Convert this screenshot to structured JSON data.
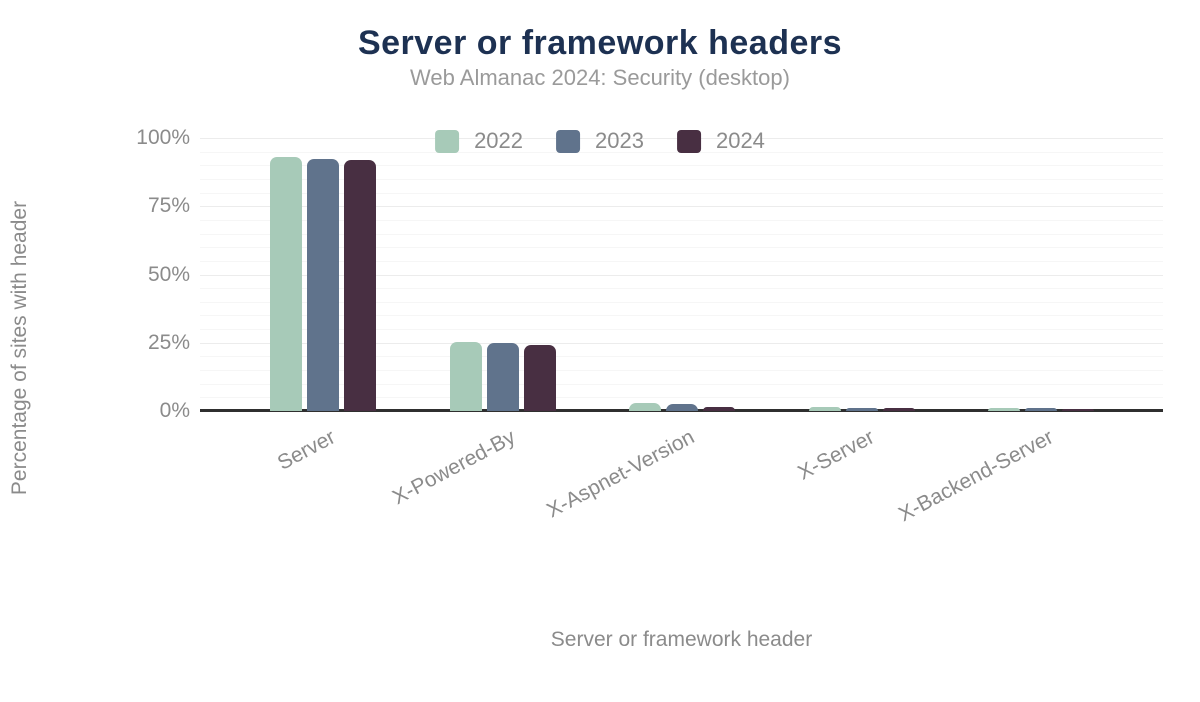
{
  "header": {
    "title": "Server or framework headers",
    "subtitle": "Web Almanac 2024: Security (desktop)"
  },
  "chart_data": {
    "type": "bar",
    "title": "Server or framework headers",
    "subtitle": "Web Almanac 2024: Security (desktop)",
    "xlabel": "Server or framework header",
    "ylabel": "Percentage of sites with header",
    "categories": [
      "Server",
      "X-Powered-By",
      "X-Aspnet-Version",
      "X-Server",
      "X-Backend-Server"
    ],
    "series": [
      {
        "name": "2022",
        "color": "#a7cab8",
        "values": [
          92.9,
          25.2,
          2.9,
          1.3,
          1.1
        ]
      },
      {
        "name": "2023",
        "color": "#60738c",
        "values": [
          92.2,
          25.0,
          2.7,
          1.2,
          1.0
        ]
      },
      {
        "name": "2024",
        "color": "#482f42",
        "values": [
          91.8,
          24.2,
          1.6,
          1.1,
          0.9
        ]
      }
    ],
    "ylim": [
      0,
      100
    ],
    "yticks": [
      {
        "value": 0,
        "label": "0%"
      },
      {
        "value": 25,
        "label": "25%"
      },
      {
        "value": 50,
        "label": "50%"
      },
      {
        "value": 75,
        "label": "75%"
      },
      {
        "value": 100,
        "label": "100%"
      }
    ],
    "grid": {
      "major_step": 25,
      "minor_step": 5,
      "minor_on": true
    },
    "legend_position": "top-center"
  },
  "colors": {
    "title": "#1d3152",
    "subtitle": "#9a9a9a",
    "axis_text": "#8b8b8b",
    "axis_line": "#2f2f2f",
    "grid_major": "#ececec",
    "grid_minor": "#f6f6f6",
    "background": "#ffffff"
  }
}
